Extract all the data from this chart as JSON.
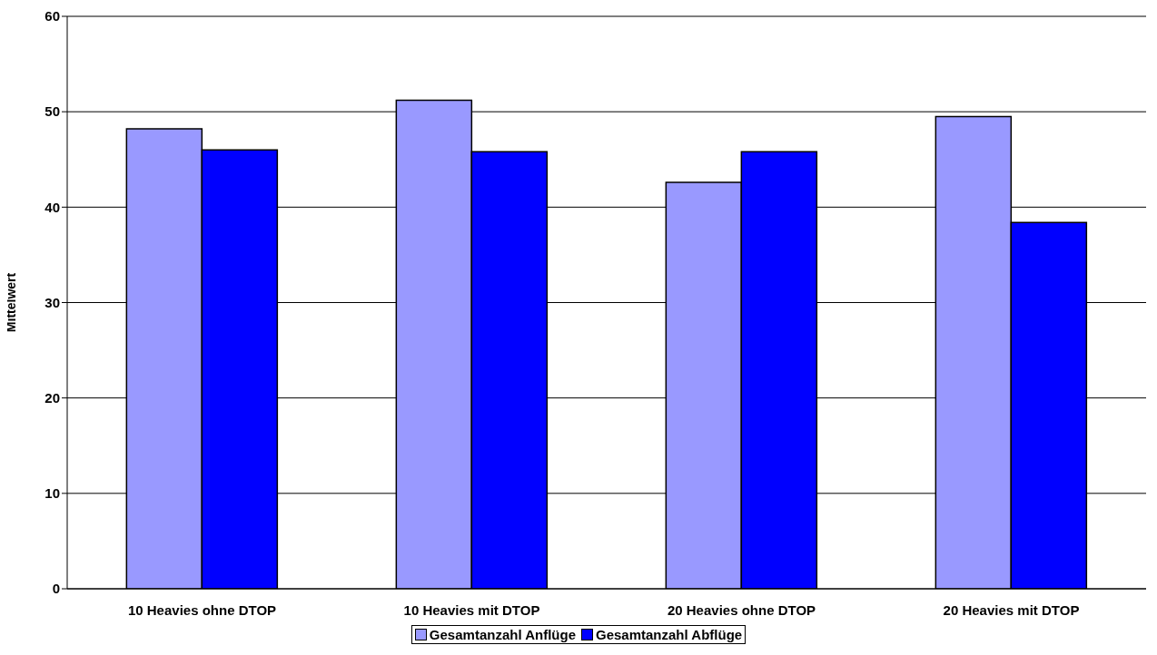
{
  "chart_data": {
    "type": "bar",
    "ylabel": "Mittelwert",
    "categories": [
      "10 Heavies ohne DTOP",
      "10 Heavies mit DTOP",
      "20 Heavies ohne DTOP",
      "20 Heavies mit DTOP"
    ],
    "series": [
      {
        "name": "Gesamtanzahl Anflüge",
        "color": "#9999ff",
        "values": [
          48.2,
          51.2,
          42.6,
          49.5
        ]
      },
      {
        "name": "Gesamtanzahl Abflüge",
        "color": "#0000ff",
        "values": [
          46.0,
          45.8,
          45.8,
          38.4
        ]
      }
    ],
    "ylim": [
      0,
      60
    ],
    "yticks": [
      0,
      10,
      20,
      30,
      40,
      50,
      60
    ],
    "grid": "y",
    "legend": "bottom"
  }
}
